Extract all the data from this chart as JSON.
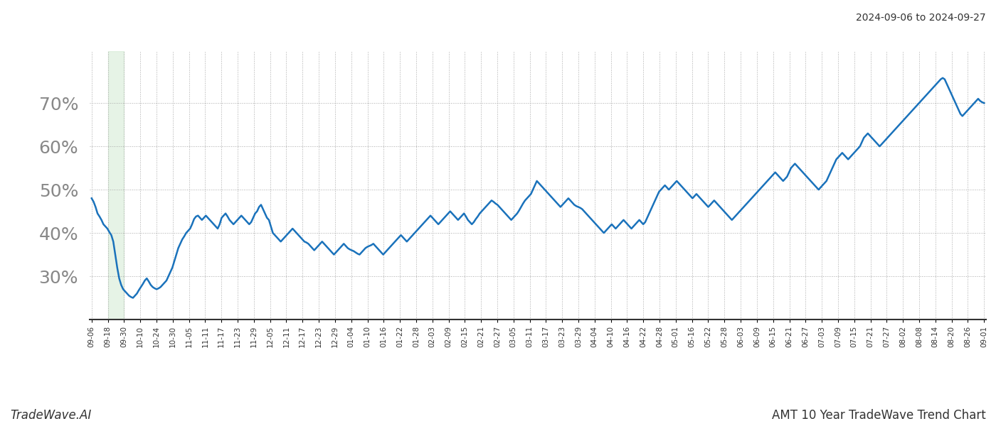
{
  "title_date_range": "2024-09-06 to 2024-09-27",
  "footer_left": "TradeWave.AI",
  "footer_right": "AMT 10 Year TradeWave Trend Chart",
  "line_color": "#1a72bb",
  "line_width": 1.8,
  "shade_color": "#c8e6c9",
  "shade_alpha": 0.45,
  "background_color": "#ffffff",
  "grid_color": "#aaaaaa",
  "ylim": [
    20,
    82
  ],
  "yticks": [
    30,
    40,
    50,
    60,
    70
  ],
  "ytick_fontsize": 18,
  "ytick_color": "#888888",
  "xtick_fontsize": 7.5,
  "xtick_color": "#333333",
  "x_labels": [
    "09-06",
    "09-18",
    "09-30",
    "10-10",
    "10-24",
    "10-30",
    "11-05",
    "11-11",
    "11-17",
    "11-23",
    "11-29",
    "12-05",
    "12-11",
    "12-17",
    "12-23",
    "12-29",
    "01-04",
    "01-10",
    "01-16",
    "01-22",
    "01-28",
    "02-03",
    "02-09",
    "02-15",
    "02-21",
    "02-27",
    "03-05",
    "03-11",
    "03-17",
    "03-23",
    "03-29",
    "04-04",
    "04-10",
    "04-16",
    "04-22",
    "04-28",
    "05-01",
    "05-16",
    "05-22",
    "05-28",
    "06-03",
    "06-09",
    "06-15",
    "06-21",
    "06-27",
    "07-03",
    "07-09",
    "07-15",
    "07-21",
    "07-27",
    "08-02",
    "08-08",
    "08-14",
    "08-20",
    "08-26",
    "09-01"
  ],
  "shade_x_start_label": "09-18",
  "shade_x_end_label": "09-30",
  "y_values": [
    48.0,
    47.2,
    46.0,
    44.5,
    43.8,
    43.0,
    42.0,
    41.5,
    41.0,
    40.2,
    39.5,
    38.0,
    35.0,
    32.0,
    29.5,
    28.0,
    27.0,
    26.5,
    26.0,
    25.5,
    25.2,
    25.0,
    25.5,
    26.0,
    26.8,
    27.5,
    28.2,
    29.0,
    29.5,
    28.8,
    28.0,
    27.5,
    27.2,
    27.0,
    27.2,
    27.5,
    28.0,
    28.5,
    29.0,
    30.0,
    31.0,
    32.0,
    33.5,
    35.0,
    36.5,
    37.5,
    38.5,
    39.2,
    40.0,
    40.5,
    41.0,
    42.0,
    43.2,
    43.8,
    44.0,
    43.5,
    43.0,
    43.5,
    44.0,
    43.5,
    43.0,
    42.5,
    42.0,
    41.5,
    41.0,
    42.0,
    43.5,
    44.0,
    44.5,
    43.8,
    43.0,
    42.5,
    42.0,
    42.5,
    43.0,
    43.5,
    44.0,
    43.5,
    43.0,
    42.5,
    42.0,
    42.5,
    43.5,
    44.5,
    45.0,
    46.0,
    46.5,
    45.5,
    44.5,
    43.5,
    43.0,
    41.5,
    40.0,
    39.5,
    39.0,
    38.5,
    38.0,
    38.5,
    39.0,
    39.5,
    40.0,
    40.5,
    41.0,
    40.5,
    40.0,
    39.5,
    39.0,
    38.5,
    38.0,
    37.8,
    37.5,
    37.0,
    36.5,
    36.0,
    36.5,
    37.0,
    37.5,
    38.0,
    37.5,
    37.0,
    36.5,
    36.0,
    35.5,
    35.0,
    35.5,
    36.0,
    36.5,
    37.0,
    37.5,
    37.0,
    36.5,
    36.2,
    36.0,
    35.8,
    35.5,
    35.2,
    35.0,
    35.5,
    36.0,
    36.5,
    36.8,
    37.0,
    37.2,
    37.5,
    37.0,
    36.5,
    36.0,
    35.5,
    35.0,
    35.5,
    36.0,
    36.5,
    37.0,
    37.5,
    38.0,
    38.5,
    39.0,
    39.5,
    39.0,
    38.5,
    38.0,
    38.5,
    39.0,
    39.5,
    40.0,
    40.5,
    41.0,
    41.5,
    42.0,
    42.5,
    43.0,
    43.5,
    44.0,
    43.5,
    43.0,
    42.5,
    42.0,
    42.5,
    43.0,
    43.5,
    44.0,
    44.5,
    45.0,
    44.5,
    44.0,
    43.5,
    43.0,
    43.5,
    44.0,
    44.5,
    43.8,
    43.0,
    42.5,
    42.0,
    42.5,
    43.2,
    43.8,
    44.5,
    45.0,
    45.5,
    46.0,
    46.5,
    47.0,
    47.5,
    47.2,
    46.8,
    46.5,
    46.0,
    45.5,
    45.0,
    44.5,
    44.0,
    43.5,
    43.0,
    43.5,
    44.0,
    44.5,
    45.2,
    46.0,
    46.8,
    47.5,
    48.0,
    48.5,
    49.0,
    50.0,
    51.0,
    52.0,
    51.5,
    51.0,
    50.5,
    50.0,
    49.5,
    49.0,
    48.5,
    48.0,
    47.5,
    47.0,
    46.5,
    46.0,
    46.5,
    47.0,
    47.5,
    48.0,
    47.5,
    47.0,
    46.5,
    46.2,
    46.0,
    45.8,
    45.5,
    45.0,
    44.5,
    44.0,
    43.5,
    43.0,
    42.5,
    42.0,
    41.5,
    41.0,
    40.5,
    40.0,
    40.5,
    41.0,
    41.5,
    42.0,
    41.5,
    41.0,
    41.5,
    42.0,
    42.5,
    43.0,
    42.5,
    42.0,
    41.5,
    41.0,
    41.5,
    42.0,
    42.5,
    43.0,
    42.5,
    42.0,
    42.5,
    43.5,
    44.5,
    45.5,
    46.5,
    47.5,
    48.5,
    49.5,
    50.0,
    50.5,
    51.0,
    50.5,
    50.0,
    50.5,
    51.0,
    51.5,
    52.0,
    51.5,
    51.0,
    50.5,
    50.0,
    49.5,
    49.0,
    48.5,
    48.0,
    48.5,
    49.0,
    48.5,
    48.0,
    47.5,
    47.0,
    46.5,
    46.0,
    46.5,
    47.0,
    47.5,
    47.0,
    46.5,
    46.0,
    45.5,
    45.0,
    44.5,
    44.0,
    43.5,
    43.0,
    43.5,
    44.0,
    44.5,
    45.0,
    45.5,
    46.0,
    46.5,
    47.0,
    47.5,
    48.0,
    48.5,
    49.0,
    49.5,
    50.0,
    50.5,
    51.0,
    51.5,
    52.0,
    52.5,
    53.0,
    53.5,
    54.0,
    53.5,
    53.0,
    52.5,
    52.0,
    52.5,
    53.0,
    54.0,
    55.0,
    55.5,
    56.0,
    55.5,
    55.0,
    54.5,
    54.0,
    53.5,
    53.0,
    52.5,
    52.0,
    51.5,
    51.0,
    50.5,
    50.0,
    50.5,
    51.0,
    51.5,
    52.0,
    53.0,
    54.0,
    55.0,
    56.0,
    57.0,
    57.5,
    58.0,
    58.5,
    58.0,
    57.5,
    57.0,
    57.5,
    58.0,
    58.5,
    59.0,
    59.5,
    60.0,
    61.0,
    62.0,
    62.5,
    63.0,
    62.5,
    62.0,
    61.5,
    61.0,
    60.5,
    60.0,
    60.5,
    61.0,
    61.5,
    62.0,
    62.5,
    63.0,
    63.5,
    64.0,
    64.5,
    65.0,
    65.5,
    66.0,
    66.5,
    67.0,
    67.5,
    68.0,
    68.5,
    69.0,
    69.5,
    70.0,
    70.5,
    71.0,
    71.5,
    72.0,
    72.5,
    73.0,
    73.5,
    74.0,
    74.5,
    75.0,
    75.5,
    75.8,
    75.5,
    74.5,
    73.5,
    72.5,
    71.5,
    70.5,
    69.5,
    68.5,
    67.5,
    67.0,
    67.5,
    68.0,
    68.5,
    69.0,
    69.5,
    70.0,
    70.5,
    71.0,
    70.5,
    70.2,
    70.0
  ]
}
